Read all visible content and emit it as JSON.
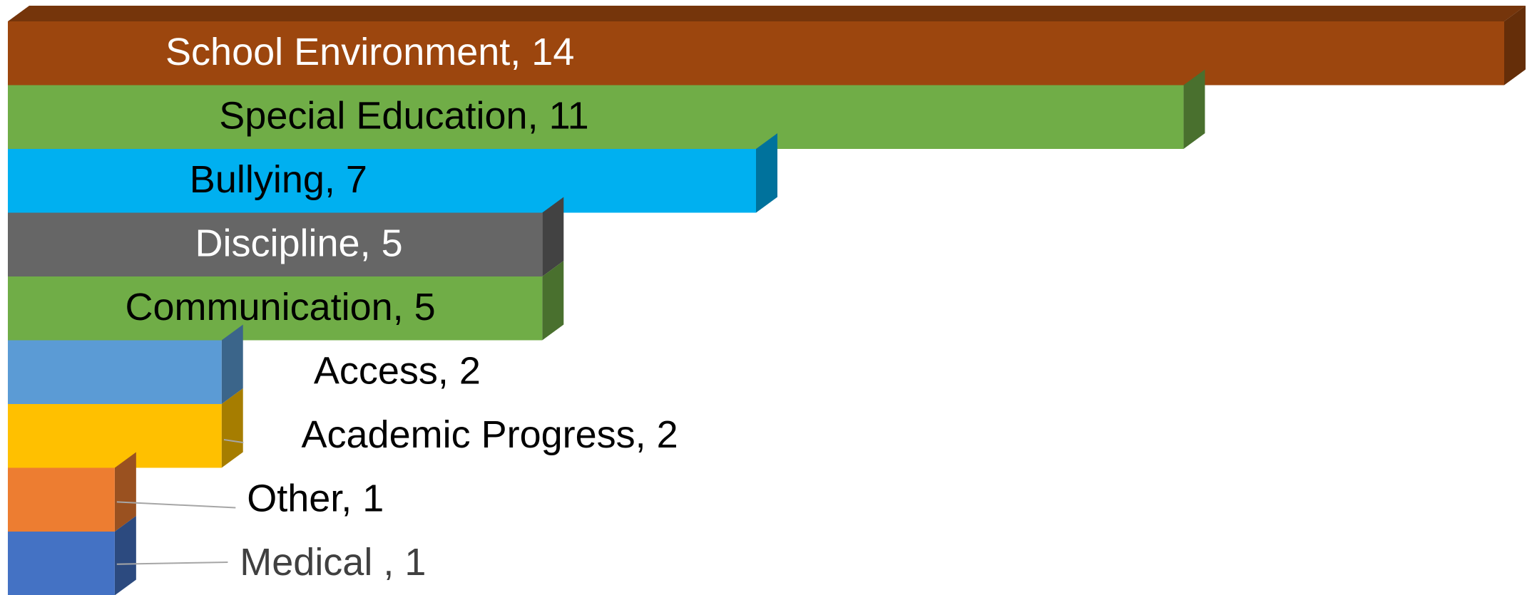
{
  "chart_data": {
    "type": "bar",
    "orientation": "horizontal",
    "three_d": true,
    "values": [
      14,
      11,
      7,
      5,
      5,
      2,
      2,
      1,
      1
    ],
    "value_labels": [
      "School Environment, 14",
      "Special Education, 11",
      "Bullying, 7",
      "Discipline, 5",
      "Communication, 5",
      "Access, 2",
      "Academic Progress, 2",
      "Other, 1",
      "Medical , 1"
    ],
    "colors": [
      "#9c460e",
      "#70ad47",
      "#00b0f0",
      "#666666",
      "#70ad47",
      "#5b9bd5",
      "#ffc000",
      "#ed7d31",
      "#4472c4"
    ],
    "label_colors": [
      "#ffffff",
      "#000000",
      "#000000",
      "#ffffff",
      "#000000",
      "#000000",
      "#000000",
      "#000000",
      "#404040"
    ],
    "xlim": [
      0,
      14
    ]
  }
}
